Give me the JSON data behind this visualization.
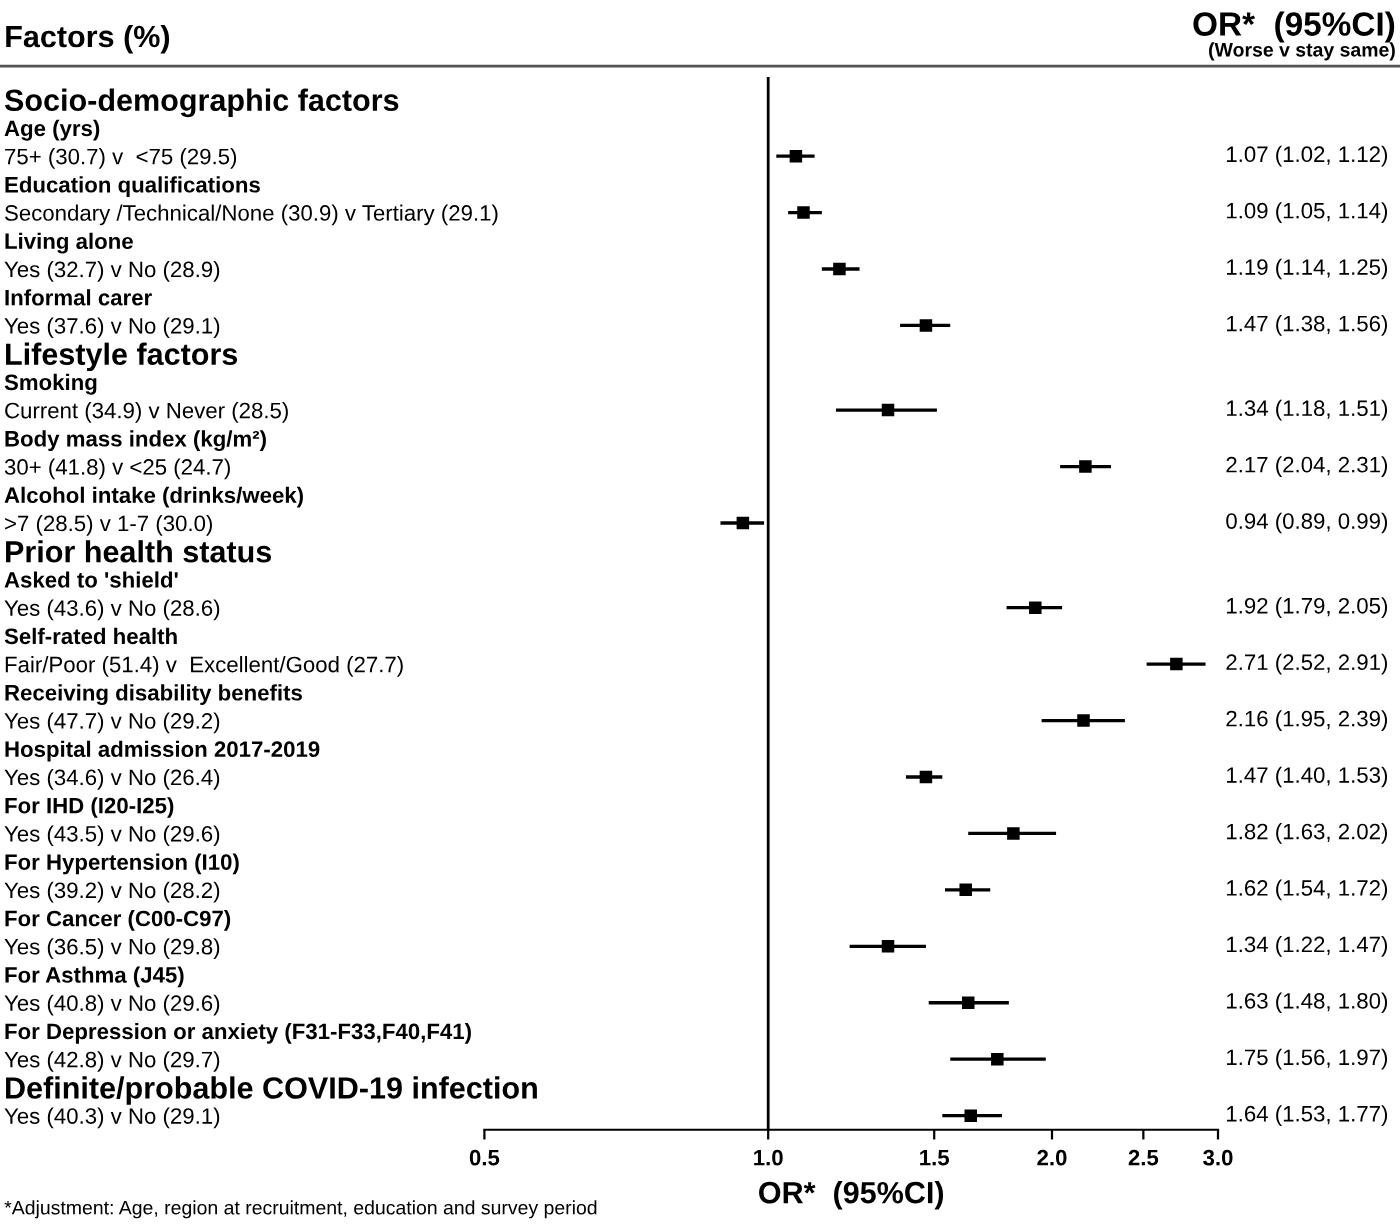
{
  "chart_data": {
    "type": "scatter",
    "title": "Factors (%)",
    "xlabel": "OR*  (95%CI)",
    "annotations": [
      "OR*  (95%CI)",
      "(Worse v stay same)",
      "*Adjustment: Age, region at recruitment, education and survey period"
    ],
    "categories": [
      "Socio-demographic factors",
      " Age (yrs)",
      "   75+ (30.7) v  <75 (29.5)",
      " Education qualifications",
      "   Secondary /Technical/None (30.9) v Tertiary (29.1)",
      " Living alone",
      "   Yes (32.7) v No (28.9)",
      " Informal carer",
      "   Yes (37.6) v No (29.1)",
      "Lifestyle factors",
      " Smoking",
      "   Current (34.9) v Never (28.5)",
      " Body mass index (kg/m²)",
      "   30+ (41.8) v <25 (24.7)",
      " Alcohol intake (drinks/week)",
      "   >7 (28.5) v 1-7 (30.0)",
      "Prior health status",
      " Asked to 'shield'",
      "   Yes (43.6) v No (28.6)",
      " Self-rated health",
      "   Fair/Poor (51.4) v  Excellent/Good (27.7)",
      " Receiving disability benefits",
      "   Yes (47.7) v No (29.2)",
      " Hospital admission 2017-2019",
      "   Yes (34.6) v No (26.4)",
      "   For IHD (I20-I25)",
      "     Yes (43.5) v No (29.6)",
      "   For Hypertension (I10)",
      "     Yes (39.2) v No (28.2)",
      "   For Cancer (C00-C97)",
      "     Yes (36.5) v No (29.8)",
      "   For Asthma (J45)",
      "     Yes (40.8) v No (29.6)",
      "   For Depression or anxiety (F31-F33,F40,F41)",
      "     Yes (42.8) v No (29.7)",
      "Definite/probable COVID-19 infection",
      "   Yes (40.3) v No (29.1)"
    ],
    "series": [
      {
        "color": "#000000",
        "values": [
          null,
          null,
          1.07,
          null,
          1.09,
          null,
          1.19,
          null,
          1.47,
          null,
          null,
          1.34,
          null,
          2.17,
          null,
          0.94,
          null,
          null,
          1.92,
          null,
          2.71,
          null,
          2.16,
          null,
          1.47,
          null,
          1.82,
          null,
          1.62,
          null,
          1.34,
          null,
          1.63,
          null,
          1.75,
          null,
          1.64
        ],
        "errors": [
          null,
          null,
          [
            1.02,
            1.12
          ],
          null,
          [
            1.05,
            1.14
          ],
          null,
          [
            1.14,
            1.25
          ],
          null,
          [
            1.38,
            1.56
          ],
          null,
          null,
          [
            1.18,
            1.51
          ],
          null,
          [
            2.04,
            2.31
          ],
          null,
          [
            0.89,
            0.99
          ],
          null,
          null,
          [
            1.79,
            2.05
          ],
          null,
          [
            2.52,
            2.91
          ],
          null,
          [
            1.95,
            2.39
          ],
          null,
          [
            1.4,
            1.53
          ],
          null,
          [
            1.63,
            2.02
          ],
          null,
          [
            1.54,
            1.72
          ],
          null,
          [
            1.22,
            1.47
          ],
          null,
          [
            1.48,
            1.8
          ],
          null,
          [
            1.56,
            1.97
          ],
          null,
          [
            1.53,
            1.77
          ]
        ],
        "value_labels": [
          null,
          null,
          "1.07 (1.02, 1.12)",
          null,
          "1.09 (1.05, 1.14)",
          null,
          "1.19 (1.14, 1.25)",
          null,
          "1.47 (1.38, 1.56)",
          null,
          null,
          "1.34 (1.18, 1.51)",
          null,
          "2.17 (2.04, 2.31)",
          null,
          "0.94 (0.89, 0.99)",
          null,
          null,
          "1.92 (1.79, 2.05)",
          null,
          "2.71 (2.52, 2.91)",
          null,
          "2.16 (1.95, 2.39)",
          null,
          "1.47 (1.40, 1.53)",
          null,
          "1.82 (1.63, 2.02)",
          null,
          "1.62 (1.54, 1.72)",
          null,
          "1.34 (1.22, 1.47)",
          null,
          "1.63 (1.48, 1.80)",
          null,
          "1.75 (1.56, 1.97)",
          null,
          "1.64 (1.53, 1.77)"
        ]
      }
    ],
    "log": "x",
    "xlim": [
      0.5,
      3.0
    ],
    "xticks": [
      {
        "value": 0.5,
        "label": "0.5"
      },
      {
        "value": 1.0,
        "label": "1.0"
      },
      {
        "value": 1.5,
        "label": "1.5"
      },
      {
        "value": 2.0,
        "label": "2.0"
      },
      {
        "value": 2.5,
        "label": "2.5"
      },
      {
        "value": 3.0,
        "label": "3.0"
      }
    ],
    "orientation": "horizontal",
    "marker": "square",
    "grid": false,
    "legend": false,
    "ref_lines": [
      {
        "axis": "x",
        "value": 1.0,
        "color": "#000000"
      }
    ]
  }
}
